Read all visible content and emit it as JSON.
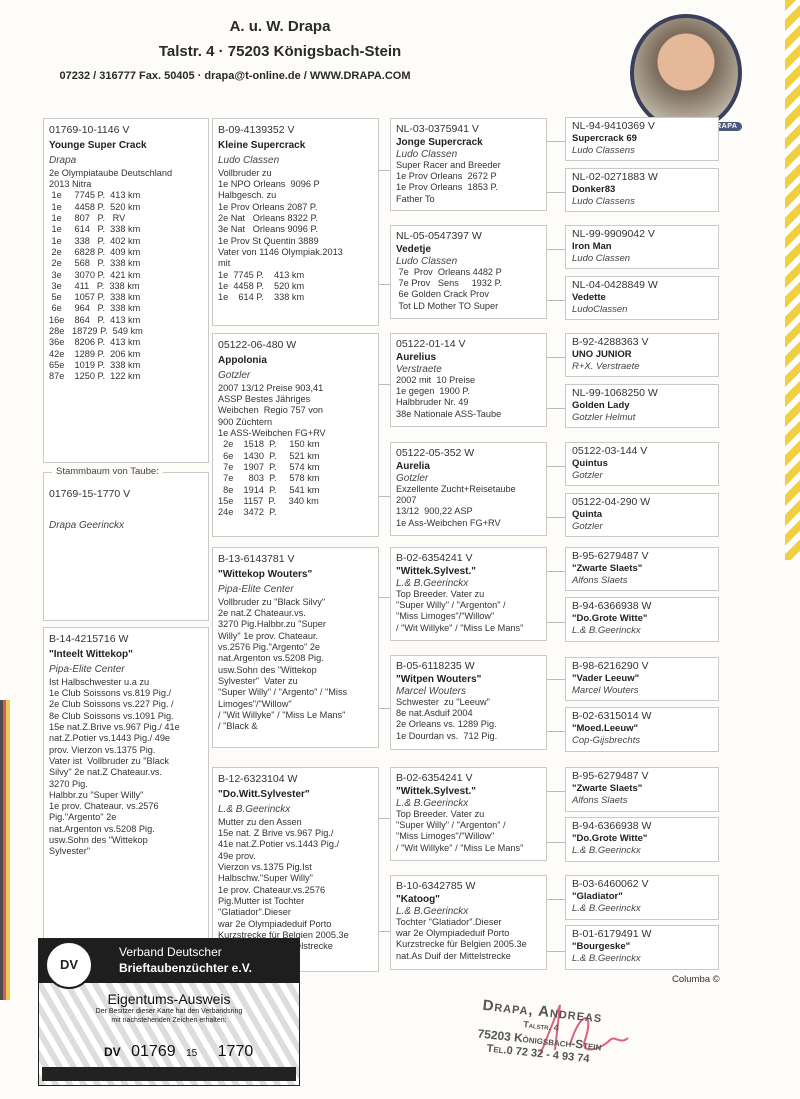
{
  "header": {
    "name": "A. u. W. Drapa",
    "address": "Talstr. 4  ·  75203 Königsbach-Stein",
    "contact": "07232 / 316777 Fax. 50405  ·  drapa@t-online.de / WWW.DRAPA.COM"
  },
  "photo_banner": "ANDREAS DRAPA",
  "stammbaum": {
    "legend": "Stammbaum von Taube:",
    "ring": "01769-15-1770 V",
    "breeder": "Drapa Geerinckx"
  },
  "col1": [
    {
      "ring": "01769-10-1146 V",
      "name": "Younge Super Crack",
      "breeder": "Drapa",
      "lines": [
        "2e Olympiataube Deutschland",
        "2013 Nitra",
        " 1e     7745 P.  413 km",
        " 1e     4458 P.  520 km",
        " 1e     807   P.   RV",
        " 1e     614   P.  338 km",
        " 1e     338   P.  402 km",
        " 2e     6828 P.  409 km",
        " 2e     568   P.  338 km",
        " 3e     3070 P.  421 km",
        " 3e     411   P.  338 km",
        " 5e     1057 P.  338 km",
        " 6e     964   P.  338 km",
        "16e    864   P.  413 km",
        "28e   18729 P.  549 km",
        "36e    8206 P.  413 km",
        "42e    1289 P.  206 km",
        "65e    1019 P.  338 km",
        "87e    1250 P.  122 km"
      ]
    },
    {
      "ring": "B-14-4215716 W",
      "name": "\"Inteelt Wittekop\"",
      "breeder": "Pipa-Elite Center",
      "lines": [
        "Ist Halbschwester u.a zu",
        "1e Club Soissons vs.819 Pig./",
        "2e Club Soissons vs.227 Pig. /",
        "8e Club Soissons vs.1091 Pig.",
        "15e nat.Z.Brive vs.967 Pig./ 41e",
        "nat.Z.Potier vs.1443 Pig./ 49e",
        "prov. Vierzon vs.1375 Pig.",
        "Vater ist  Vollbruder zu \"Black",
        "Silvy\" 2e nat.Z Chateaur.vs.",
        "3270 Pig.",
        "Halbbr.zu \"Super Willy\"",
        "1e prov. Chateaur. vs.2576",
        "Pig.\"Argento\" 2e",
        "nat.Argenton vs.5208 Pig.",
        "usw.Sohn des \"Wittekop",
        "Sylvester\""
      ]
    }
  ],
  "col2": [
    {
      "ring": "B-09-4139352 V",
      "name": "Kleine Supercrack",
      "breeder": "Ludo Classen",
      "lines": [
        "Vollbruder zu",
        "1e NPO Orleans  9096 P",
        "Halbgesch. zu",
        "1e Prov Orleans 2087 P.",
        "2e Nat   Orleans 8322 P.",
        "3e Nat   Orleans 9096 P.",
        "1e Prov St Quentin 3889",
        "Vater von 1146 Olympiak.2013",
        "mit",
        "1e  7745 P.    413 km",
        "1e  4458 P.    520 km",
        "1e    614 P.    338 km"
      ]
    },
    {
      "ring": "05122-06-480 W",
      "name": "Appolonia",
      "breeder": "Gotzler",
      "lines": [
        "2007 13/12 Preise 903,41",
        "ASSP Bestes Jähriges",
        "Weibchen  Regio 757 von",
        "900 Züchtern",
        "1e ASS-Weibchen FG+RV",
        "  2e    1518  P.     150 km",
        "  6e    1430  P.     521 km",
        "  7e    1907  P.     574 km",
        "  7e      803  P.     578 km",
        "  8e    1914  P.     541 km",
        "15e    1157  P.     340 km",
        "24e    3472  P."
      ]
    },
    {
      "ring": "B-13-6143781 V",
      "name": "\"Wittekop Wouters\"",
      "breeder": "Pipa-Elite Center",
      "lines": [
        "Vollbruder zu \"Black Silvy\"",
        "2e nat.Z Chateaur.vs.",
        "3270 Pig.Halbbr.zu \"Super",
        "Willy\" 1e prov. Chateaur.",
        "vs.2576 Pig.\"Argento\" 2e",
        "nat.Argenton vs.5208 Pig.",
        "usw.Sohn des \"Wittekop",
        "Sylvester\"  Vater zu",
        "\"Super Willy\" / \"Argento\" / \"Miss",
        "Limoges\"/\"Willow\"",
        "/ \"Wit Willyke\" / \"Miss Le Mans\"",
        "/ \"Black &"
      ]
    },
    {
      "ring": "B-12-6323104 W",
      "name": "\"Do.Witt.Sylvester\"",
      "breeder": "L.& B.Geerinckx",
      "lines": [
        "Mutter zu den Assen",
        "15e nat. Z Brive vs.967 Pig./",
        "41e nat.Z.Potier vs.1443 Pig./",
        "49e prov.",
        "Vierzon vs.1375 Pig.Ist",
        "Halbschw.\"Super Willy\"",
        "1e prov. Chateaur.vs.2576",
        "Pig.Mutter ist Tochter",
        "\"Glatiador\".Dieser",
        "war 2e Olympiadeduif Porto",
        "Kurzstrecke für Belgien 2005.3e",
        "nat.As Duif der Mittelstrecke"
      ]
    }
  ],
  "col3": [
    {
      "ring": "NL-03-0375941 V",
      "name": "Jonge Supercrack",
      "breeder": "Ludo Classen",
      "lines": [
        "Super Racer and Breeder",
        "1e Prov Orleans  2672 P",
        "1e Prov Orleans  1853 P.",
        "Father To"
      ]
    },
    {
      "ring": "NL-05-0547397 W",
      "name": "Vedetje",
      "breeder": "Ludo Classen",
      "lines": [
        " 7e  Prov  Orleans 4482 P",
        " 7e Prov   Sens     1932 P.",
        " 6e Golden Crack Prov",
        " Tot LD Mother TO Super"
      ]
    },
    {
      "ring": "05122-01-14 V",
      "name": "Aurelius",
      "breeder": "Verstraete",
      "lines": [
        "2002 mit  10 Preise",
        "1e gegen  1900 P.",
        "Halbbruder Nr. 49",
        "38e Nationale ASS-Taube"
      ]
    },
    {
      "ring": "05122-05-352 W",
      "name": "Aurelia",
      "breeder": "Gotzler",
      "lines": [
        "Exzellente Zucht+Reisetaube",
        "2007",
        "13/12  900,22 ASP",
        "1e Ass-Weibchen FG+RV"
      ]
    },
    {
      "ring": "B-02-6354241 V",
      "name": "\"Wittek.Sylvest.\"",
      "breeder": "L.& B.Geerinckx",
      "lines": [
        "Top Breeder. Vater zu",
        "\"Super Willy\" / \"Argenton\" /",
        "\"Miss Limoges\"/\"Willow\"",
        "/ \"Wit Willyke\" / \"Miss Le Mans\""
      ]
    },
    {
      "ring": "B-05-6118235 W",
      "name": "\"Witpen Wouters\"",
      "breeder": "Marcel Wouters",
      "lines": [
        "Schwester  zu \"Leeuw\"",
        "8e nat.Asduif 2004",
        "2e Orleans vs. 1289 Pig.",
        "1e Dourdan vs.  712 Pig."
      ]
    },
    {
      "ring": "B-02-6354241 V",
      "name": "\"Wittek.Sylvest.\"",
      "breeder": "L.& B.Geerinckx",
      "lines": [
        "Top Breeder. Vater zu",
        "\"Super Willy\" / \"Argenton\" /",
        "\"Miss Limoges\"/\"Willow\"",
        "/ \"Wit Willyke\" / \"Miss Le Mans\""
      ]
    },
    {
      "ring": "B-10-6342785 W",
      "name": "\"Katoog\"",
      "breeder": "L.& B.Geerinckx",
      "lines": [
        "Tochter \"Glatiador\".Dieser",
        "war 2e Olympiadeduif Porto",
        "Kurzstrecke für Belgien 2005.3e",
        "nat.As Duif der Mittelstrecke"
      ]
    }
  ],
  "col4": [
    {
      "ring": "NL-94-9410369 V",
      "name": "Supercrack 69",
      "breeder": "Ludo Classens"
    },
    {
      "ring": "NL-02-0271883 W",
      "name": "Donker83",
      "breeder": "Ludo Classens"
    },
    {
      "ring": "NL-99-9909042 V",
      "name": "Iron Man",
      "breeder": "Ludo Classen"
    },
    {
      "ring": "NL-04-0428849 W",
      "name": "Vedette",
      "breeder": "LudoClassen"
    },
    {
      "ring": "B-92-4288363 V",
      "name": "UNO JUNIOR",
      "breeder": "R+X. Verstraete"
    },
    {
      "ring": "NL-99-1068250 W",
      "name": "Golden Lady",
      "breeder": "Gotzler Helmut"
    },
    {
      "ring": "05122-03-144 V",
      "name": "Quintus",
      "breeder": "Gotzler"
    },
    {
      "ring": "05122-04-290 W",
      "name": "Quinta",
      "breeder": "Gotzler"
    },
    {
      "ring": "B-95-6279487 V",
      "name": "\"Zwarte Slaets\"",
      "breeder": "Alfons Slaets"
    },
    {
      "ring": "B-94-6366938 W",
      "name": "\"Do.Grote Witte\"",
      "breeder": "L.& B.Geerinckx"
    },
    {
      "ring": "B-98-6216290 V",
      "name": "\"Vader Leeuw\"",
      "breeder": "Marcel Wouters"
    },
    {
      "ring": "B-02-6315014 W",
      "name": "\"Moed.Leeuw\"",
      "breeder": "Cop-Gijsbrechts"
    },
    {
      "ring": "B-95-6279487 V",
      "name": "\"Zwarte Slaets\"",
      "breeder": "Alfons Slaets"
    },
    {
      "ring": "B-94-6366938 W",
      "name": "\"Do.Grote Witte\"",
      "breeder": "L.& B.Geerinckx"
    },
    {
      "ring": "B-03-6460062 V",
      "name": "\"Gladiator\"",
      "breeder": "L.& B.Geerinckx"
    },
    {
      "ring": "B-01-6179491 W",
      "name": "\"Bourgeske\"",
      "breeder": "L.& B.Geerinckx"
    }
  ],
  "card": {
    "logo": "DV",
    "org_line1": "Verband Deutscher",
    "org_line2": "Brieftaubenzüchter e.V.",
    "title": "Eigentums-Ausweis",
    "sub1": "Der Besitzer dieser Karte hat den Verbandsring",
    "sub2": "mit nachstehenden Zeichen erhalten:",
    "prefix": "DV",
    "club": "01769",
    "year": "15",
    "number": "1770"
  },
  "columba": "Columba ©",
  "stamp": {
    "line1": "Drapa, Andreas",
    "line2": "Talstr. 4",
    "line3": "75203 Königsbach-Stein",
    "line4": "Tel.0 72 32 - 4 93 74"
  }
}
